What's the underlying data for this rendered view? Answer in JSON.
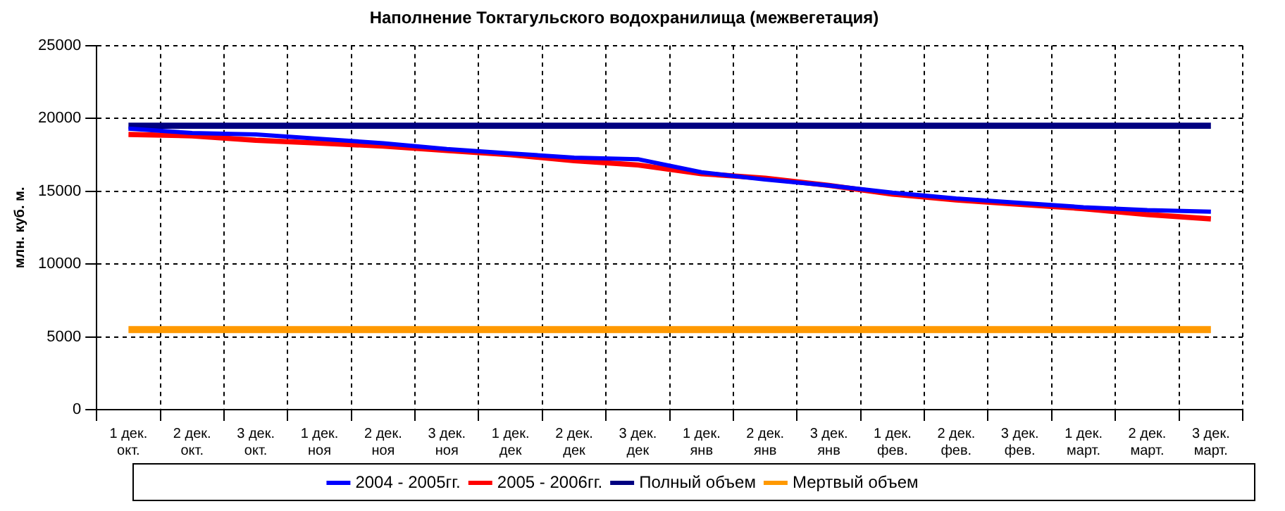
{
  "chart_data": {
    "type": "line",
    "title": "Наполнение Токтагульского водохранилища (межвегетация)",
    "ylabel": "млн. куб. м.",
    "categories": [
      "1 дек.\nокт.",
      "2 дек.\nокт.",
      "3 дек.\nокт.",
      "1 дек.\nноя",
      "2 дек.\nноя",
      "3 дек.\nноя",
      "1 дек.\nдек",
      "2 дек.\nдек",
      "3 дек.\nдек",
      "1 дек.\nянв",
      "2 дек.\nянв",
      "3 дек.\nянв",
      "1 дек.\nфев.",
      "2 дек.\nфев.",
      "3 дек.\nфев.",
      "1 дек.\nмарт.",
      "2 дек.\nмарт.",
      "3 дек.\nмарт."
    ],
    "series": [
      {
        "name": "2004 - 2005гг.",
        "color": "#0000ff",
        "values": [
          19300,
          19000,
          18900,
          18600,
          18300,
          17900,
          17600,
          17300,
          17200,
          16300,
          15800,
          15400,
          14900,
          14500,
          14200,
          13900,
          13700,
          13600
        ]
      },
      {
        "name": "2005 - 2006гг.",
        "color": "#ff0000",
        "values": [
          18900,
          18800,
          18500,
          18300,
          18100,
          17800,
          17500,
          17100,
          16800,
          16200,
          15900,
          15400,
          14800,
          14400,
          14100,
          13800,
          13400,
          13100
        ]
      },
      {
        "name": "Полный объем",
        "color": "#000080",
        "values": [
          19500,
          19500,
          19500,
          19500,
          19500,
          19500,
          19500,
          19500,
          19500,
          19500,
          19500,
          19500,
          19500,
          19500,
          19500,
          19500,
          19500,
          19500
        ]
      },
      {
        "name": "Мертвый объем",
        "color": "#ff9900",
        "values": [
          5500,
          5500,
          5500,
          5500,
          5500,
          5500,
          5500,
          5500,
          5500,
          5500,
          5500,
          5500,
          5500,
          5500,
          5500,
          5500,
          5500,
          5500
        ]
      }
    ],
    "ylim": [
      0,
      25000
    ],
    "yticks": [
      0,
      5000,
      10000,
      15000,
      20000,
      25000
    ],
    "grid": true,
    "legend": "bottom",
    "marker": "none",
    "line_style": "solid"
  }
}
